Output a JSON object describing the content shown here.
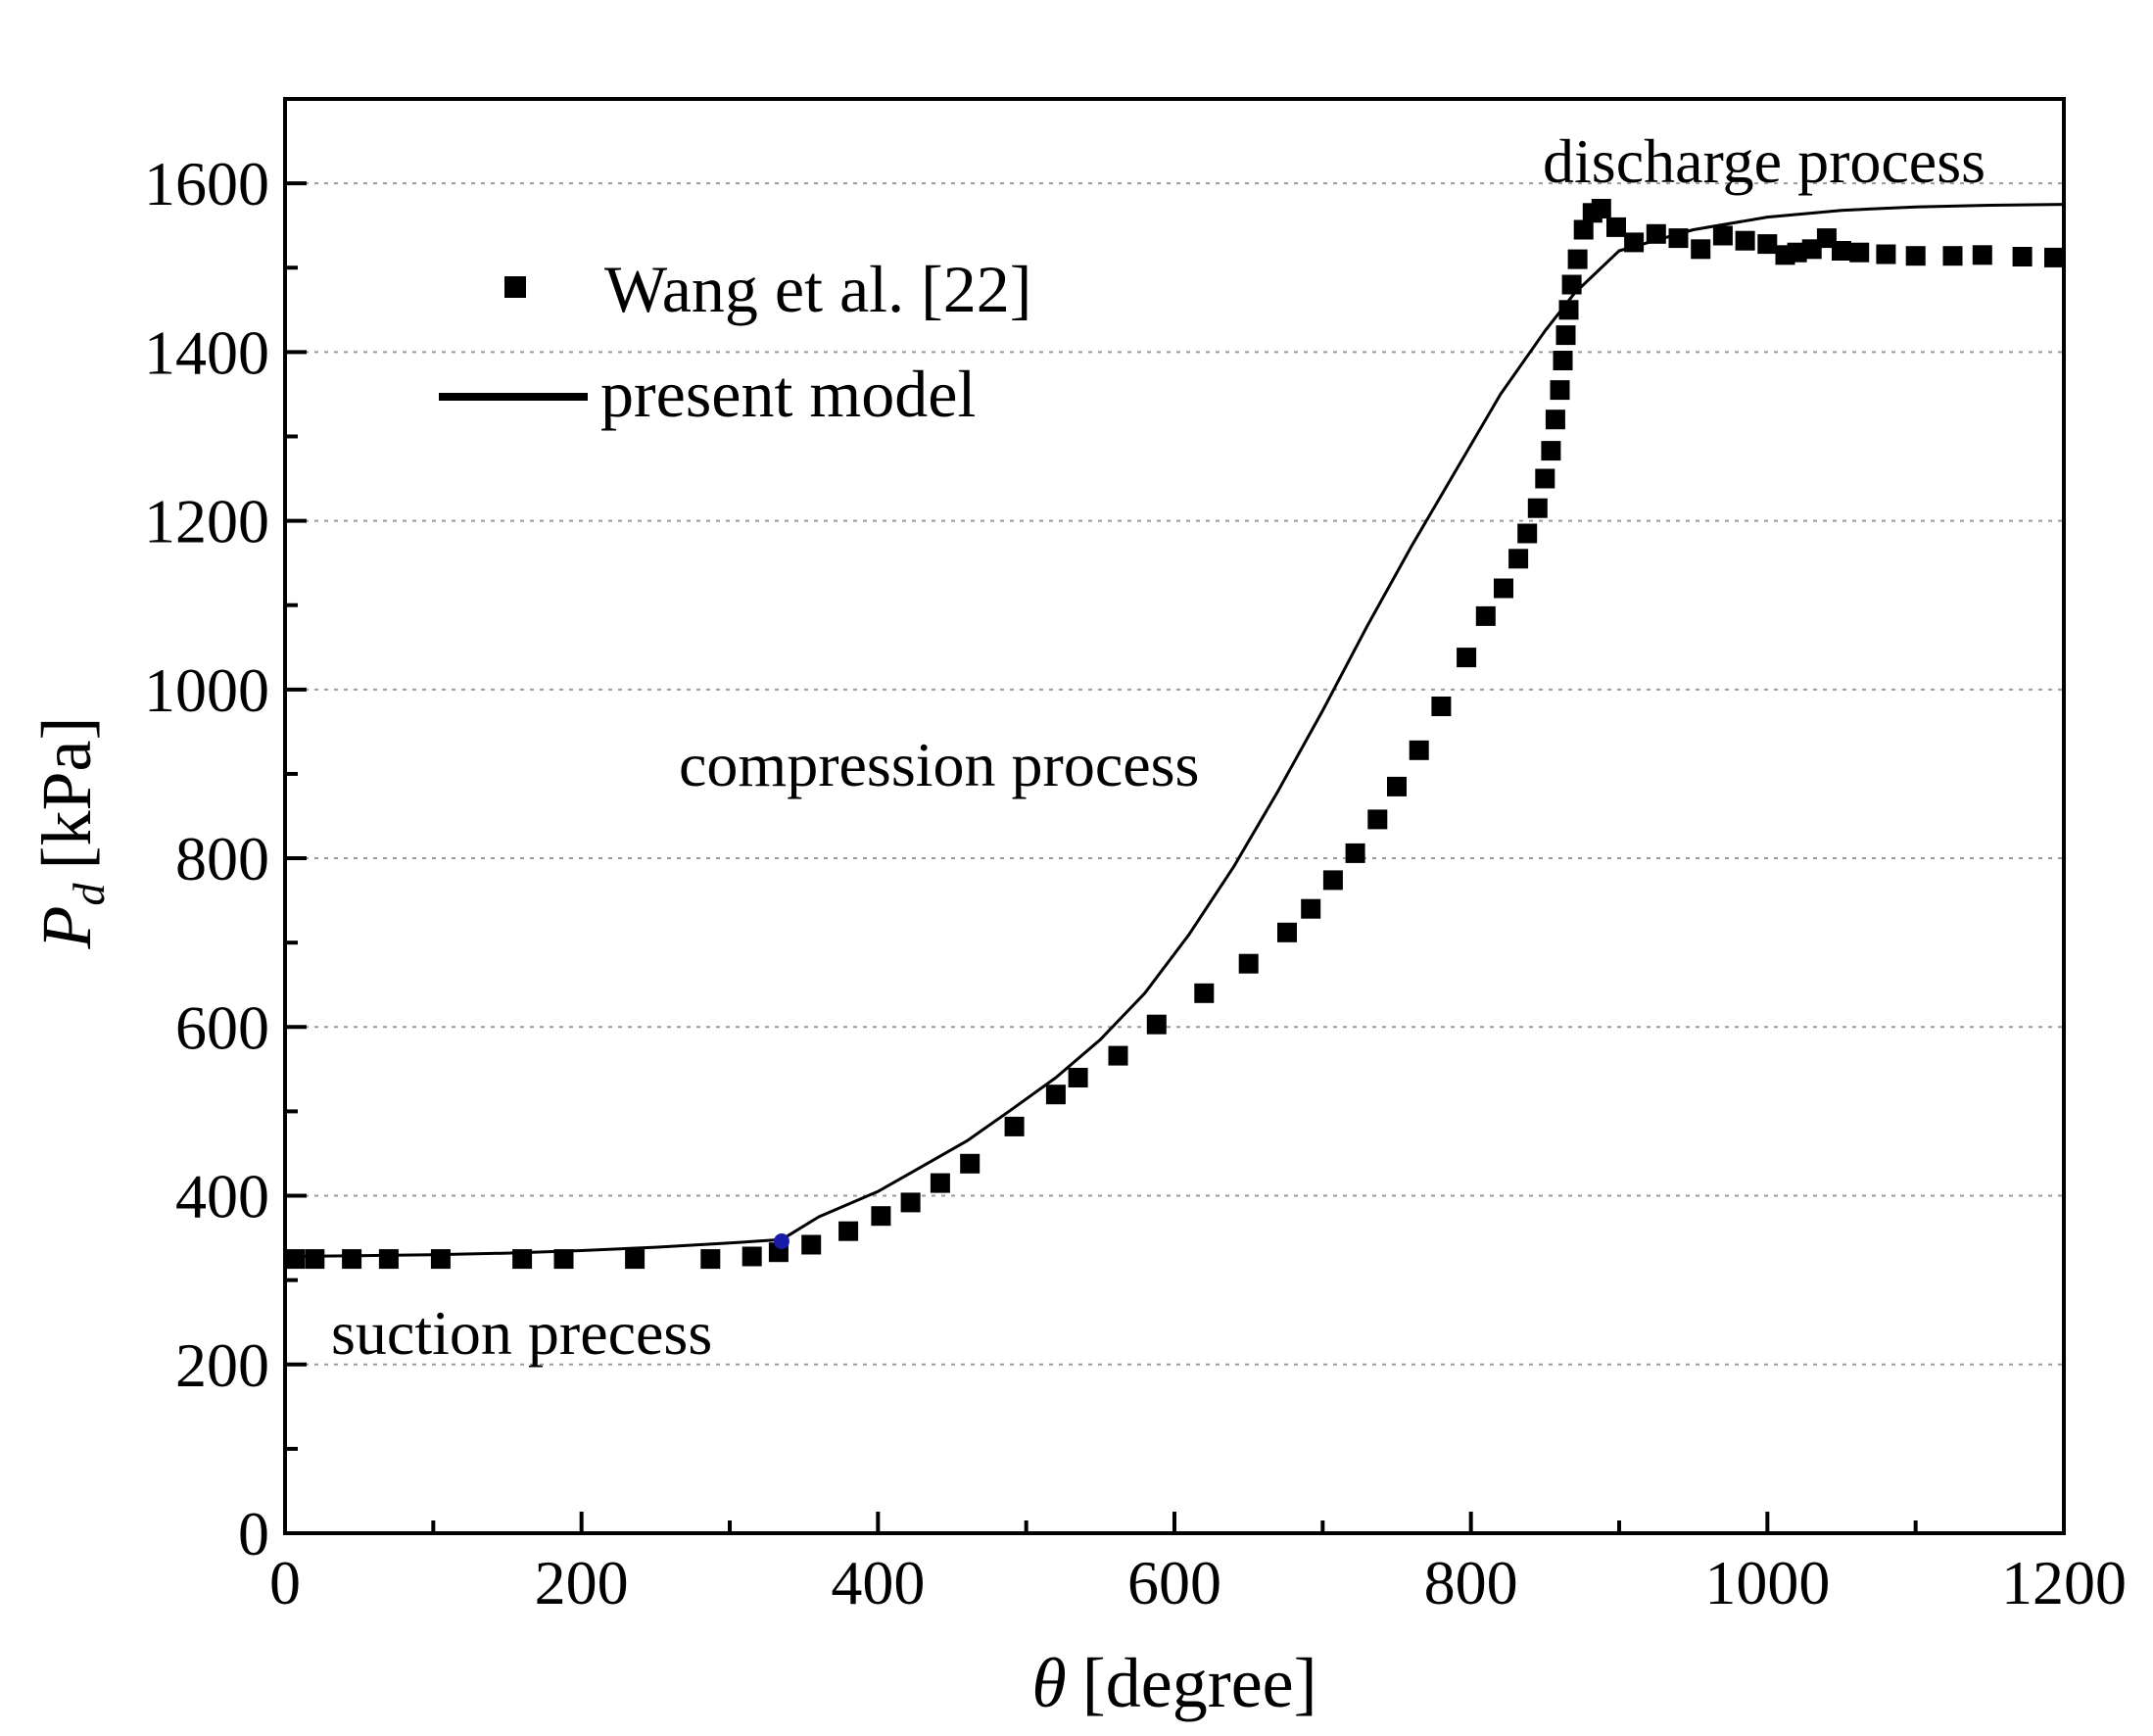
{
  "chart_data": {
    "type": "scatter+line",
    "title": "",
    "xlabel_symbol": "θ",
    "xlabel_unit": "[degree]",
    "ylabel_symbol": "P",
    "ylabel_subscript": "d",
    "ylabel_unit": "[kPa]",
    "xlim": [
      0,
      1200
    ],
    "ylim": [
      0,
      1700
    ],
    "xticks": [
      0,
      200,
      400,
      600,
      800,
      1000,
      1200
    ],
    "yticks": [
      0,
      200,
      400,
      600,
      800,
      1000,
      1200,
      1400,
      1600
    ],
    "xtick_labels": [
      "0",
      "200",
      "400",
      "600",
      "800",
      "1000",
      "1200"
    ],
    "ytick_labels": [
      "0",
      "200",
      "400",
      "600",
      "800",
      "1000",
      "1200",
      "1400",
      "1600"
    ],
    "grid": "horizontal dotted",
    "legend_position": "upper-left",
    "legend": {
      "wang": "Wang et al. [22]",
      "model": "present model"
    },
    "annotations": {
      "suction": "suction precess",
      "compression": "compression process",
      "discharge": "discharge process"
    },
    "series": [
      {
        "name": "Wang et al. [22]",
        "style": "square-markers",
        "color": "#000000",
        "x": [
          0,
          20,
          45,
          70,
          105,
          160,
          188,
          236,
          287,
          315,
          333,
          355,
          380,
          402,
          422,
          442,
          462,
          492,
          520,
          535,
          562,
          588,
          620,
          650,
          676,
          692,
          707,
          722,
          737,
          750,
          765,
          780,
          797,
          810,
          822,
          832,
          838,
          845,
          850,
          854,
          857,
          860,
          862,
          864,
          866,
          868,
          872,
          876,
          882,
          888,
          898,
          910,
          925,
          940,
          955,
          970,
          985,
          1000,
          1012,
          1020,
          1030,
          1040,
          1050,
          1062,
          1080,
          1100,
          1125,
          1145,
          1172,
          1198
        ],
        "y": [
          325,
          325,
          325,
          325,
          325,
          325,
          325,
          325,
          325,
          328,
          333,
          342,
          358,
          376,
          392,
          415,
          438,
          482,
          520,
          540,
          566,
          603,
          640,
          675,
          712,
          740,
          774,
          806,
          846,
          885,
          928,
          980,
          1038,
          1087,
          1120,
          1155,
          1185,
          1215,
          1250,
          1283,
          1320,
          1355,
          1390,
          1420,
          1450,
          1480,
          1510,
          1545,
          1565,
          1570,
          1548,
          1530,
          1540,
          1535,
          1522,
          1538,
          1532,
          1528,
          1515,
          1518,
          1522,
          1535,
          1520,
          1518,
          1516,
          1514,
          1514,
          1515,
          1513,
          1512
        ]
      },
      {
        "name": "present model",
        "style": "solid-line",
        "color": "#000000",
        "x": [
          0,
          50,
          100,
          150,
          200,
          250,
          300,
          335,
          360,
          380,
          400,
          430,
          460,
          490,
          520,
          550,
          580,
          610,
          640,
          670,
          700,
          730,
          760,
          790,
          820,
          850,
          870,
          900,
          950,
          1000,
          1050,
          1100,
          1150,
          1200
        ],
        "y": [
          328,
          329,
          330,
          332,
          335,
          339,
          344,
          348,
          375,
          390,
          405,
          435,
          465,
          502,
          540,
          585,
          640,
          710,
          790,
          880,
          975,
          1075,
          1170,
          1260,
          1350,
          1425,
          1470,
          1520,
          1545,
          1560,
          1568,
          1572,
          1574,
          1575
        ]
      }
    ]
  }
}
